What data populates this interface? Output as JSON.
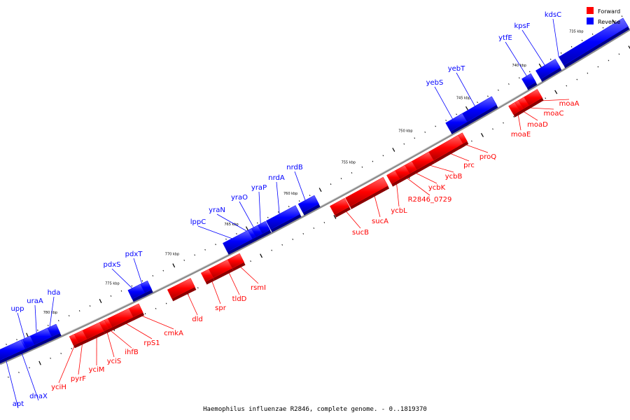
{
  "caption": "Haemophilus influenzae R2846, complete genome. - 0..1819370",
  "legend": {
    "forward_label": "Forward",
    "reverse_label": "Reverse",
    "forward_color": "#ff0000",
    "reverse_color": "#0000ff"
  },
  "colors": {
    "forward": "#ff0000",
    "reverse": "#0000ff",
    "backbone": "#8c8c8c",
    "tick": "#000000"
  },
  "kbp_labels": [
    "735 kbp",
    "740 kbp",
    "745 kbp",
    "750 kbp",
    "755 kbp",
    "760 kbp",
    "765 kbp",
    "770 kbp",
    "775 kbp",
    "780 kbp"
  ],
  "genes": [
    {
      "name": "kdsC",
      "strand": "reverse"
    },
    {
      "name": "kpsF",
      "strand": "reverse"
    },
    {
      "name": "ytfE",
      "strand": "reverse"
    },
    {
      "name": "yebT",
      "strand": "reverse"
    },
    {
      "name": "yebS",
      "strand": "reverse"
    },
    {
      "name": "moaA",
      "strand": "forward"
    },
    {
      "name": "moaC",
      "strand": "forward"
    },
    {
      "name": "moaD",
      "strand": "forward"
    },
    {
      "name": "moaE",
      "strand": "forward"
    },
    {
      "name": "proQ",
      "strand": "forward"
    },
    {
      "name": "prc",
      "strand": "forward"
    },
    {
      "name": "ycbB",
      "strand": "forward"
    },
    {
      "name": "ycbK",
      "strand": "forward"
    },
    {
      "name": "R2846_0729",
      "strand": "forward"
    },
    {
      "name": "ycbL",
      "strand": "forward"
    },
    {
      "name": "sucA",
      "strand": "forward"
    },
    {
      "name": "sucB",
      "strand": "forward"
    },
    {
      "name": "nrdB",
      "strand": "reverse"
    },
    {
      "name": "nrdA",
      "strand": "reverse"
    },
    {
      "name": "yraP",
      "strand": "reverse"
    },
    {
      "name": "yraO",
      "strand": "reverse"
    },
    {
      "name": "yraN",
      "strand": "reverse"
    },
    {
      "name": "lppC",
      "strand": "reverse"
    },
    {
      "name": "rsmI",
      "strand": "forward"
    },
    {
      "name": "tldD",
      "strand": "forward"
    },
    {
      "name": "spr",
      "strand": "forward"
    },
    {
      "name": "dld",
      "strand": "forward"
    },
    {
      "name": "pdxT",
      "strand": "reverse"
    },
    {
      "name": "pdxS",
      "strand": "reverse"
    },
    {
      "name": "cmkA",
      "strand": "forward"
    },
    {
      "name": "rpS1",
      "strand": "forward"
    },
    {
      "name": "ihfB",
      "strand": "forward"
    },
    {
      "name": "yciS",
      "strand": "forward"
    },
    {
      "name": "yciM",
      "strand": "forward"
    },
    {
      "name": "pyrF",
      "strand": "forward"
    },
    {
      "name": "yciH",
      "strand": "forward"
    },
    {
      "name": "hda",
      "strand": "reverse"
    },
    {
      "name": "uraA",
      "strand": "reverse"
    },
    {
      "name": "upp",
      "strand": "reverse"
    },
    {
      "name": "dnaX",
      "strand": "reverse"
    },
    {
      "name": "apt",
      "strand": "reverse"
    }
  ]
}
